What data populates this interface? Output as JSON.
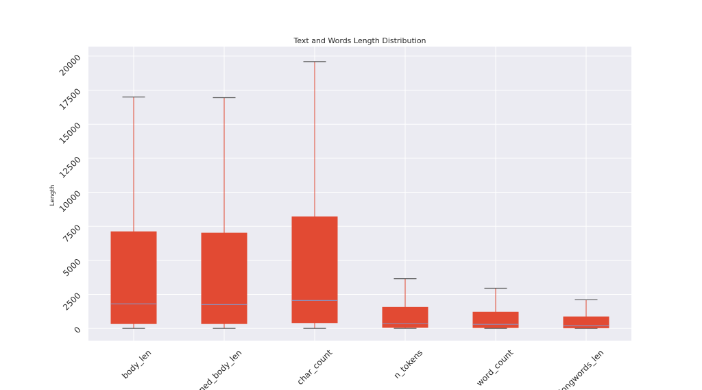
{
  "chart_data": {
    "type": "box",
    "title": "Text and Words Length Distribution",
    "xlabel": "",
    "ylabel": "Length",
    "ylim": [
      -900,
      20700
    ],
    "yticks": [
      0,
      2500,
      5000,
      7500,
      10000,
      12500,
      15000,
      17500,
      20000
    ],
    "ytick_labels": [
      "0",
      "2500",
      "5000",
      "7500",
      "10000",
      "12500",
      "15000",
      "17500",
      "20000"
    ],
    "grid": true,
    "colors": {
      "box": "#e24a33",
      "median": "#8e8eba",
      "whisker": "#e24a33",
      "cap": "#555555",
      "plot_bg": "#ebebf2",
      "grid": "#ffffff"
    },
    "categories": [
      "body_len",
      "cleaned_body_len",
      "char_count",
      "n_tokens",
      "word_count",
      "longwords_len"
    ],
    "boxes": [
      {
        "label": "body_len",
        "min": 0,
        "q1": 350,
        "median": 1800,
        "q3": 7100,
        "max": 17000
      },
      {
        "label": "cleaned_body_len",
        "min": 0,
        "q1": 350,
        "median": 1750,
        "q3": 7000,
        "max": 16950
      },
      {
        "label": "char_count",
        "min": 0,
        "q1": 420,
        "median": 2050,
        "q3": 8200,
        "max": 19600
      },
      {
        "label": "n_tokens",
        "min": 0,
        "q1": 80,
        "median": 350,
        "q3": 1550,
        "max": 3650
      },
      {
        "label": "word_count",
        "min": 0,
        "q1": 60,
        "median": 300,
        "q3": 1200,
        "max": 2950
      },
      {
        "label": "longwords_len",
        "min": 0,
        "q1": 40,
        "median": 200,
        "q3": 850,
        "max": 2100
      }
    ]
  }
}
